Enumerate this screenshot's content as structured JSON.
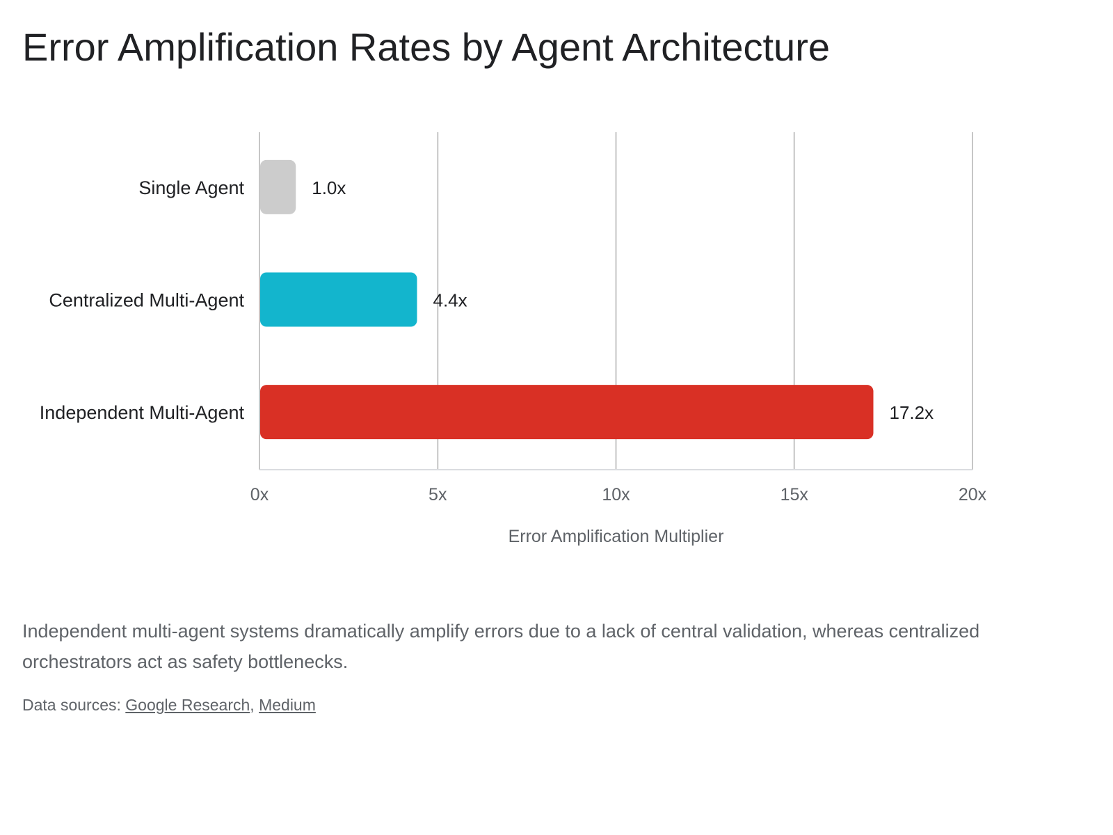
{
  "title": "Error Amplification Rates by Agent Architecture",
  "caption": "Independent multi-agent systems dramatically amplify errors due to a lack of central validation, whereas centralized orchestrators act as safety bottlenecks.",
  "sources": {
    "prefix": "Data sources: ",
    "links": [
      {
        "label": "Google Research"
      },
      {
        "label": "Medium"
      }
    ],
    "separator": ", "
  },
  "chart_data": {
    "type": "bar",
    "orientation": "horizontal",
    "title": "Error Amplification Rates by Agent Architecture",
    "categories": [
      "Single Agent",
      "Centralized Multi-Agent",
      "Independent Multi-Agent"
    ],
    "values": [
      1.0,
      4.4,
      17.2
    ],
    "value_labels": [
      "1.0x",
      "4.4x",
      "17.2x"
    ],
    "colors": [
      "#cccccc",
      "#13b5cd",
      "#d93025"
    ],
    "xlabel": "Error Amplification Multiplier",
    "ylabel": "",
    "xlim": [
      0,
      20
    ],
    "xticks": [
      0,
      5,
      10,
      15,
      20
    ],
    "xtick_labels": [
      "0x",
      "5x",
      "10x",
      "15x",
      "20x"
    ],
    "grid": true,
    "legend": "none"
  }
}
